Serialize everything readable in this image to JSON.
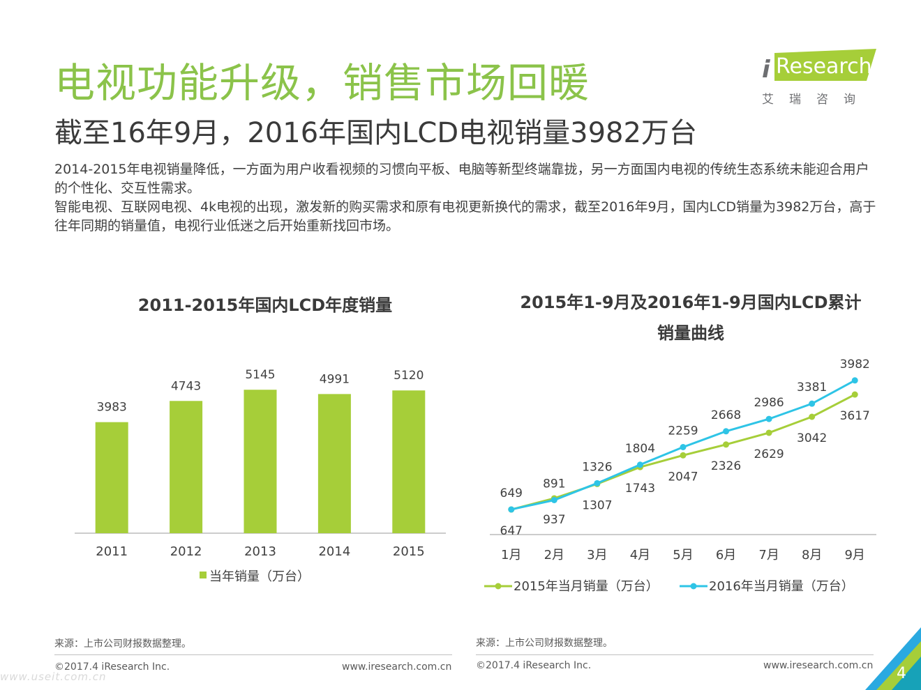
{
  "header": {
    "title": "电视功能升级，销售市场回暖",
    "subtitle": "截至16年9月，2016年国内LCD电视销量3982万台"
  },
  "logo": {
    "brand_i": "i",
    "brand_text": "Research",
    "brand_cn": "艾瑞咨询"
  },
  "body": {
    "para1": "2014-2015年电视销量降低，一方面为用户收看视频的习惯向平板、电脑等新型终端靠拢，另一方面国内电视的传统生态系统未能迎合用户的个性化、交互性需求。",
    "para2": "智能电视、互联网电视、4k电视的出现，激发新的购买需求和原有电视更新换代的需求，截至2016年9月，国内LCD销量为3982万台，高于往年同期的销量值，电视行业低迷之后开始重新找回市场。"
  },
  "chart_data": [
    {
      "type": "bar",
      "title": "2011-2015年国内LCD年度销量",
      "categories": [
        "2011",
        "2012",
        "2013",
        "2014",
        "2015"
      ],
      "values": [
        3983,
        4743,
        5145,
        4991,
        5120
      ],
      "value_labels": [
        "3983",
        "4743",
        "5145",
        "4991",
        "5120"
      ],
      "legend": "当年销量（万台）",
      "ylim": [
        0,
        6000
      ],
      "color": "#a6ce39"
    },
    {
      "type": "line",
      "title_line1": "2015年1-9月及2016年1-9月国内LCD累计",
      "title_line2": "销量曲线",
      "categories": [
        "1月",
        "2月",
        "3月",
        "4月",
        "5月",
        "6月",
        "7月",
        "8月",
        "9月"
      ],
      "series": [
        {
          "name": "2015年当月销量（万台）",
          "values": [
            647,
            937,
            1307,
            1743,
            2047,
            2326,
            2629,
            3042,
            3617
          ],
          "labels": [
            "647",
            "937",
            "1307",
            "1743",
            "2047",
            "2326",
            "2629",
            "3042",
            "3617"
          ],
          "color": "#a6ce39"
        },
        {
          "name": "2016年当月销量（万台）",
          "values": [
            649,
            891,
            1326,
            1804,
            2259,
            2668,
            2986,
            3381,
            3982
          ],
          "labels": [
            "649",
            "891",
            "1326",
            "1804",
            "2259",
            "2668",
            "2986",
            "3381",
            "3982"
          ],
          "color": "#2ec4e6"
        }
      ],
      "ylim": [
        0,
        4500
      ]
    }
  ],
  "footer": {
    "source_left": "来源：上市公司财报数据整理。",
    "source_right": "来源：上市公司财报数据整理。",
    "copyright_left": "©2017.4 iResearch Inc.",
    "url_left": "www.iresearch.com.cn",
    "copyright_right": "©2017.4 iResearch Inc.",
    "url_right": "www.iresearch.com.cn",
    "page_number": "4",
    "watermark": "www.useit.com.cn"
  },
  "colors": {
    "accent_green": "#8bc34a",
    "bar_green": "#a6ce39",
    "line_blue": "#2ec4e6",
    "corner_blue": "#2aa9e0"
  }
}
